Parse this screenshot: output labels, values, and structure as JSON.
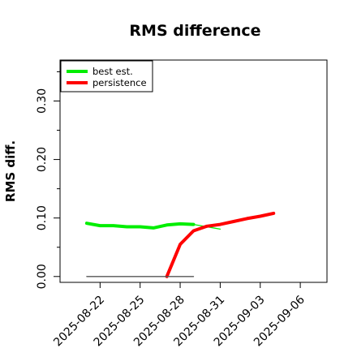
{
  "chart_data": {
    "type": "line",
    "title": "RMS difference",
    "xlabel": "",
    "ylabel": "RMS diff.",
    "ylim": [
      -0.01,
      0.37
    ],
    "xlim": [
      "2025-08-19",
      "2025-09-08"
    ],
    "grid": false,
    "legend": {
      "placement": "top-left",
      "entries": [
        "best est.",
        "persistence"
      ]
    },
    "y_ticks": [
      0.0,
      0.1,
      0.2,
      0.3
    ],
    "y_tick_labels": [
      "0.00",
      "0.10",
      "0.20",
      "0.30"
    ],
    "y_minor_ticks": [
      0.05,
      0.15,
      0.25,
      0.35
    ],
    "x_ticks": [
      "2025-08-22",
      "2025-08-25",
      "2025-08-28",
      "2025-08-31",
      "2025-09-03",
      "2025-09-06"
    ],
    "x_tick_labels": [
      "2025-08-22",
      "2025-08-25",
      "2025-08-28",
      "2025-08-31",
      "2025-09-03",
      "2025-09-06"
    ],
    "series": [
      {
        "name": "best est.",
        "color": "#00ee00",
        "points": [
          [
            "2025-08-21",
            0.091
          ],
          [
            "2025-08-22",
            0.087
          ],
          [
            "2025-08-23",
            0.087
          ],
          [
            "2025-08-24",
            0.085
          ],
          [
            "2025-08-25",
            0.085
          ],
          [
            "2025-08-26",
            0.083
          ],
          [
            "2025-08-27",
            0.088
          ],
          [
            "2025-08-28",
            0.09
          ],
          [
            "2025-08-29",
            0.089
          ]
        ]
      },
      {
        "name": "best est. (extension)",
        "color": "#00ee00",
        "points": [
          [
            "2025-08-29",
            0.089
          ],
          [
            "2025-08-31",
            0.081
          ]
        ]
      },
      {
        "name": "persistence",
        "color": "#ff0000",
        "points": [
          [
            "2025-08-27",
            0.0
          ],
          [
            "2025-08-28",
            0.055
          ],
          [
            "2025-08-29",
            0.078
          ],
          [
            "2025-08-30",
            0.086
          ],
          [
            "2025-08-31",
            0.089
          ],
          [
            "2025-09-01",
            0.094
          ],
          [
            "2025-09-02",
            0.099
          ],
          [
            "2025-09-03",
            0.103
          ],
          [
            "2025-09-04",
            0.108
          ]
        ]
      },
      {
        "name": "baseline",
        "color": "#555555",
        "points": [
          [
            "2025-08-21",
            0.0
          ],
          [
            "2025-08-29",
            0.0
          ]
        ]
      }
    ]
  }
}
